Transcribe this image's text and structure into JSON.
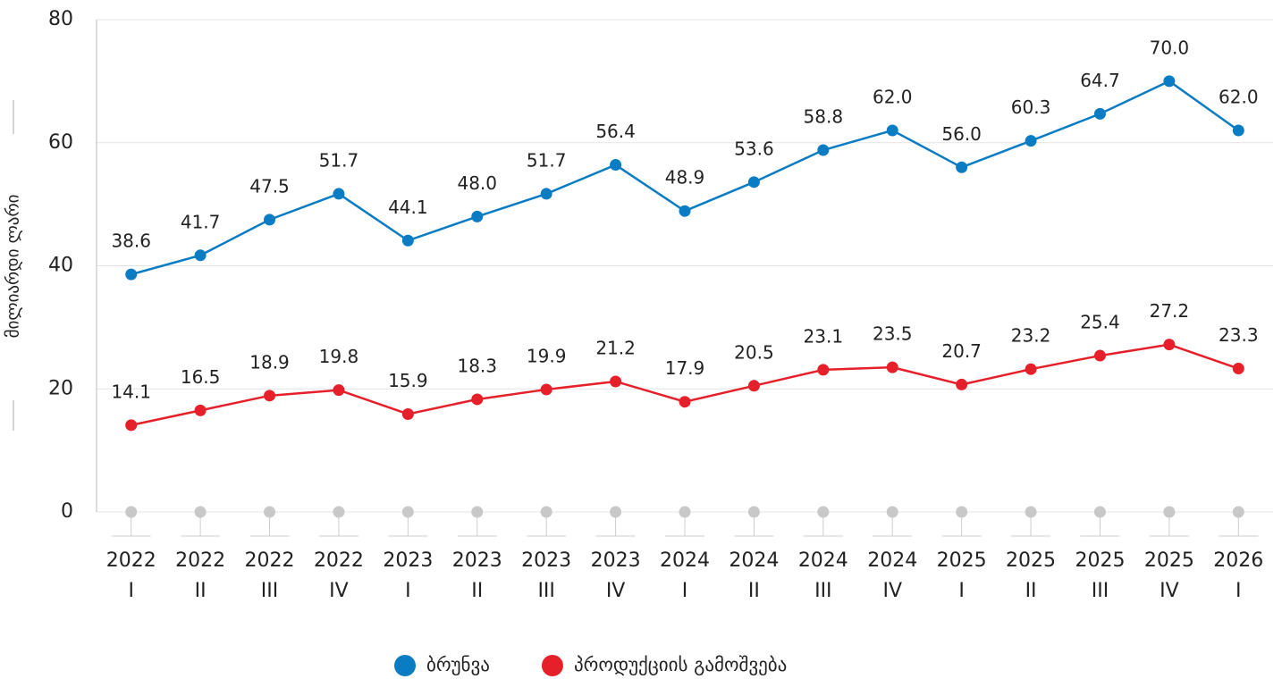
{
  "chart_data": {
    "type": "line",
    "y_label": "მილიარდი ლარი",
    "categories": [
      [
        "2022",
        "I"
      ],
      [
        "2022",
        "II"
      ],
      [
        "2022",
        "III"
      ],
      [
        "2022",
        "IV"
      ],
      [
        "2023",
        "I"
      ],
      [
        "2023",
        "II"
      ],
      [
        "2023",
        "III"
      ],
      [
        "2023",
        "IV"
      ],
      [
        "2024",
        "I"
      ],
      [
        "2024",
        "II"
      ],
      [
        "2024",
        "III"
      ],
      [
        "2024",
        "IV"
      ],
      [
        "2025",
        "I"
      ],
      [
        "2025",
        "II"
      ],
      [
        "2025",
        "III"
      ],
      [
        "2025",
        "IV"
      ],
      [
        "2026",
        "I"
      ]
    ],
    "series": [
      {
        "name": "ბრუნვა",
        "color": "#0a7cc4",
        "values": [
          38.6,
          41.7,
          47.5,
          51.7,
          44.1,
          48.0,
          51.7,
          56.4,
          48.9,
          53.6,
          58.8,
          62.0,
          56.0,
          60.3,
          64.7,
          70.0,
          62.0
        ],
        "value_labels": [
          "38.6",
          "41.7",
          "47.5",
          "51.7",
          "44.1",
          "48.0",
          "51.7",
          "56.4",
          "48.9",
          "53.6",
          "58.8",
          "62.0",
          "56.0",
          "60.3",
          "64.7",
          "70.0",
          "62.0"
        ]
      },
      {
        "name": "პროდუქციის გამოშვება",
        "color": "#e5202a",
        "values": [
          14.1,
          16.5,
          18.9,
          19.8,
          15.9,
          18.3,
          19.9,
          21.2,
          17.9,
          20.5,
          23.1,
          23.5,
          20.7,
          23.2,
          25.4,
          27.2,
          23.3
        ]
      },
      {
        "color": "#c8c8c8",
        "values": [
          0,
          0,
          0,
          0,
          0,
          0,
          0,
          0,
          0,
          0,
          0,
          0,
          0,
          0,
          0,
          0,
          0
        ]
      }
    ],
    "ylim": [
      0,
      80
    ],
    "yticks": [
      0,
      20,
      40,
      60,
      80
    ],
    "grid": true
  }
}
